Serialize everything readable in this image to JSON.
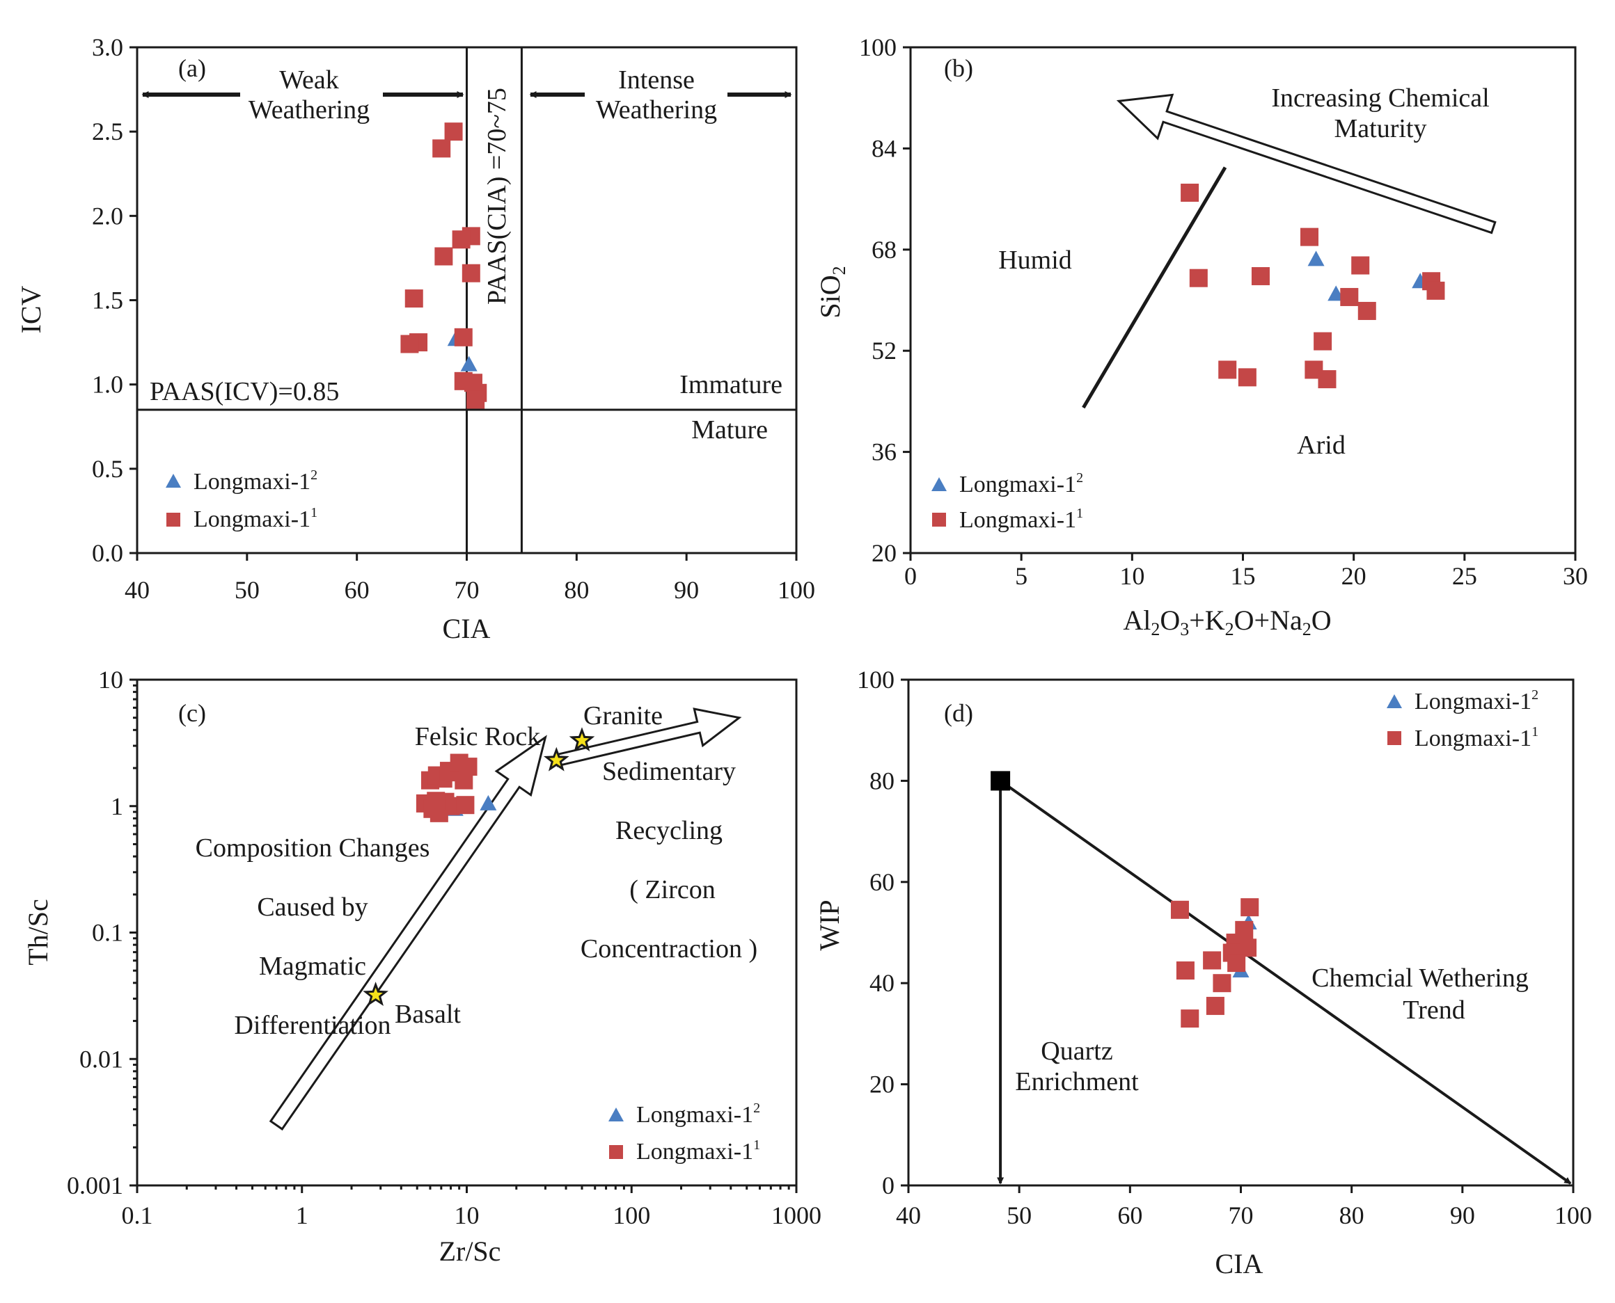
{
  "colors": {
    "series_l2": "#4a7ec2",
    "series_l1": "#c44747",
    "ink": "#1a1a1a"
  },
  "chart_data": [
    {
      "id": "a",
      "type": "scatter",
      "panel_label": "(a)",
      "xlabel": "CIA",
      "ylabel": "ICV",
      "xlim": [
        40,
        100
      ],
      "ylim": [
        0,
        3
      ],
      "xticks": [
        "40",
        "50",
        "60",
        "70",
        "80",
        "90",
        "100"
      ],
      "yticks": [
        "0.0",
        "0.5",
        "1.0",
        "1.5",
        "2.0",
        "2.5",
        "3.0"
      ],
      "ref_lines": [
        {
          "axis": "x",
          "value": 70
        },
        {
          "axis": "x",
          "value": 75
        },
        {
          "axis": "y",
          "value": 0.85
        }
      ],
      "annotations": {
        "weak_l1": "Weak",
        "weak_l2": "Weathering",
        "intense_l1": "Intense",
        "intense_l2": "Weathering",
        "paas_cia": "PAAS(CIA) =70~75",
        "paas_icv": "PAAS(ICV)=0.85",
        "immature": "Immature",
        "mature": "Mature"
      },
      "legend_position": "lower-left",
      "series": [
        {
          "name": "Longmaxi-1",
          "sup": "2",
          "marker": "triangle",
          "points": [
            [
              69.0,
              1.27
            ],
            [
              70.2,
              1.12
            ]
          ]
        },
        {
          "name": "Longmaxi-1",
          "sup": "1",
          "marker": "square",
          "points": [
            [
              68.8,
              2.5
            ],
            [
              67.7,
              2.4
            ],
            [
              70.4,
              1.88
            ],
            [
              69.5,
              1.86
            ],
            [
              67.9,
              1.76
            ],
            [
              70.4,
              1.66
            ],
            [
              65.2,
              1.51
            ],
            [
              65.6,
              1.25
            ],
            [
              64.8,
              1.24
            ],
            [
              69.7,
              1.28
            ],
            [
              69.7,
              1.02
            ],
            [
              70.6,
              1.01
            ],
            [
              71.0,
              0.95
            ],
            [
              70.8,
              0.91
            ]
          ]
        }
      ]
    },
    {
      "id": "b",
      "type": "scatter",
      "panel_label": "(b)",
      "xlabel": "Al₂O₃+K₂O+Na₂O",
      "ylabel": "SiO₂",
      "xlim": [
        0,
        30
      ],
      "ylim": [
        20,
        100
      ],
      "xticks": [
        "0",
        "5",
        "10",
        "15",
        "20",
        "25",
        "30"
      ],
      "yticks": [
        "20",
        "36",
        "52",
        "68",
        "84",
        "100"
      ],
      "annotations": {
        "trend_l1": "Increasing Chemical",
        "trend_l2": "Maturity",
        "humid": "Humid",
        "arid": "Arid"
      },
      "divider_line": [
        [
          7.8,
          43.0
        ],
        [
          14.2,
          81.0
        ]
      ],
      "trend_arrow": [
        [
          26.3,
          71.5
        ],
        [
          9.4,
          91.5
        ]
      ],
      "legend_position": "lower-left",
      "series": [
        {
          "name": "Longmaxi-1",
          "sup": "2",
          "marker": "triangle",
          "points": [
            [
              18.3,
              66.5
            ],
            [
              19.2,
              61.0
            ],
            [
              23.0,
              63.0
            ]
          ]
        },
        {
          "name": "Longmaxi-1",
          "sup": "1",
          "marker": "square",
          "points": [
            [
              12.6,
              77.0
            ],
            [
              13.0,
              63.5
            ],
            [
              15.8,
              63.8
            ],
            [
              18.0,
              70.0
            ],
            [
              20.3,
              65.5
            ],
            [
              23.5,
              63.0
            ],
            [
              23.7,
              61.5
            ],
            [
              19.8,
              60.5
            ],
            [
              20.6,
              58.3
            ],
            [
              18.6,
              53.5
            ],
            [
              14.3,
              49.0
            ],
            [
              15.2,
              47.8
            ],
            [
              18.2,
              49.0
            ],
            [
              18.8,
              47.5
            ]
          ]
        }
      ]
    },
    {
      "id": "c",
      "type": "scatter",
      "panel_label": "(c)",
      "xlabel": "Zr/Sc",
      "ylabel": "Th/Sc",
      "xscale": "log",
      "yscale": "log",
      "xlim": [
        0.1,
        1000
      ],
      "ylim": [
        0.001,
        10
      ],
      "xticks": [
        "0.1",
        "1",
        "10",
        "100",
        "1000"
      ],
      "yticks": [
        "0.001",
        "0.01",
        "0.1",
        "1",
        "10"
      ],
      "annotations": {
        "felsic": "Felsic Rock",
        "granite": "Granite",
        "basalt": "Basalt",
        "sed_l1": "Sedimentary",
        "sed_l2": "Recycling",
        "sed_l3": "( Zircon",
        "sed_l4": "Concentraction )",
        "comp_l1": "Composition Changes",
        "comp_l2": "Caused by",
        "comp_l3": "Magmatic",
        "comp_l4": "Differentiation"
      },
      "stars": [
        {
          "name": "Basalt",
          "x": 2.8,
          "y": 0.032
        },
        {
          "name": "Felsic Rock",
          "x": 35,
          "y": 2.3
        },
        {
          "name": "Granite",
          "x": 50,
          "y": 3.3
        }
      ],
      "magmatic_arrow": [
        [
          0.7,
          0.003
        ],
        [
          30,
          3.5
        ]
      ],
      "recycling_arrow": [
        [
          35,
          2.3
        ],
        [
          450,
          5.0
        ]
      ],
      "legend_position": "lower-right",
      "series": [
        {
          "name": "Longmaxi-1",
          "sup": "2",
          "marker": "triangle",
          "points": [
            [
              8.5,
              0.95
            ],
            [
              13.5,
              1.05
            ]
          ]
        },
        {
          "name": "Longmaxi-1",
          "sup": "1",
          "marker": "square",
          "points": [
            [
              6.0,
              1.6
            ],
            [
              6.6,
              1.75
            ],
            [
              7.2,
              1.65
            ],
            [
              7.8,
              1.9
            ],
            [
              8.4,
              1.85
            ],
            [
              9.0,
              2.2
            ],
            [
              9.6,
              1.6
            ],
            [
              10.2,
              2.05
            ],
            [
              5.6,
              1.05
            ],
            [
              6.2,
              0.95
            ],
            [
              6.8,
              0.88
            ],
            [
              7.4,
              1.08
            ],
            [
              8.0,
              1.0
            ],
            [
              9.8,
              1.02
            ],
            [
              6.5,
              1.1
            ]
          ]
        }
      ]
    },
    {
      "id": "d",
      "type": "scatter",
      "panel_label": "(d)",
      "xlabel": "CIA",
      "ylabel": "WIP",
      "xlim": [
        40,
        100
      ],
      "ylim": [
        0,
        100
      ],
      "xticks": [
        "40",
        "50",
        "60",
        "70",
        "80",
        "90",
        "100"
      ],
      "yticks": [
        "0",
        "20",
        "40",
        "60",
        "80",
        "100"
      ],
      "annotations": {
        "quartz_l1": "Quartz",
        "quartz_l2": "Enrichment",
        "chem_l1": "Chemcial Wethering",
        "chem_l2": "Trend"
      },
      "origin_point": [
        48.3,
        80
      ],
      "arrow_down_to": [
        48.3,
        0
      ],
      "arrow_trend_to": [
        100,
        0
      ],
      "legend_position": "upper-right",
      "series": [
        {
          "name": "Longmaxi-1",
          "sup": "2",
          "marker": "triangle",
          "points": [
            [
              70.0,
              42.5
            ],
            [
              70.7,
              52.0
            ]
          ]
        },
        {
          "name": "Longmaxi-1",
          "sup": "1",
          "marker": "square",
          "points": [
            [
              64.5,
              54.5
            ],
            [
              70.8,
              55.0
            ],
            [
              70.3,
              50.5
            ],
            [
              69.5,
              48.0
            ],
            [
              70.6,
              47.0
            ],
            [
              69.2,
              46.0
            ],
            [
              67.4,
              44.5
            ],
            [
              69.6,
              44.0
            ],
            [
              65.0,
              42.5
            ],
            [
              68.3,
              40.0
            ],
            [
              67.7,
              35.5
            ],
            [
              65.4,
              33.0
            ]
          ]
        }
      ]
    }
  ]
}
